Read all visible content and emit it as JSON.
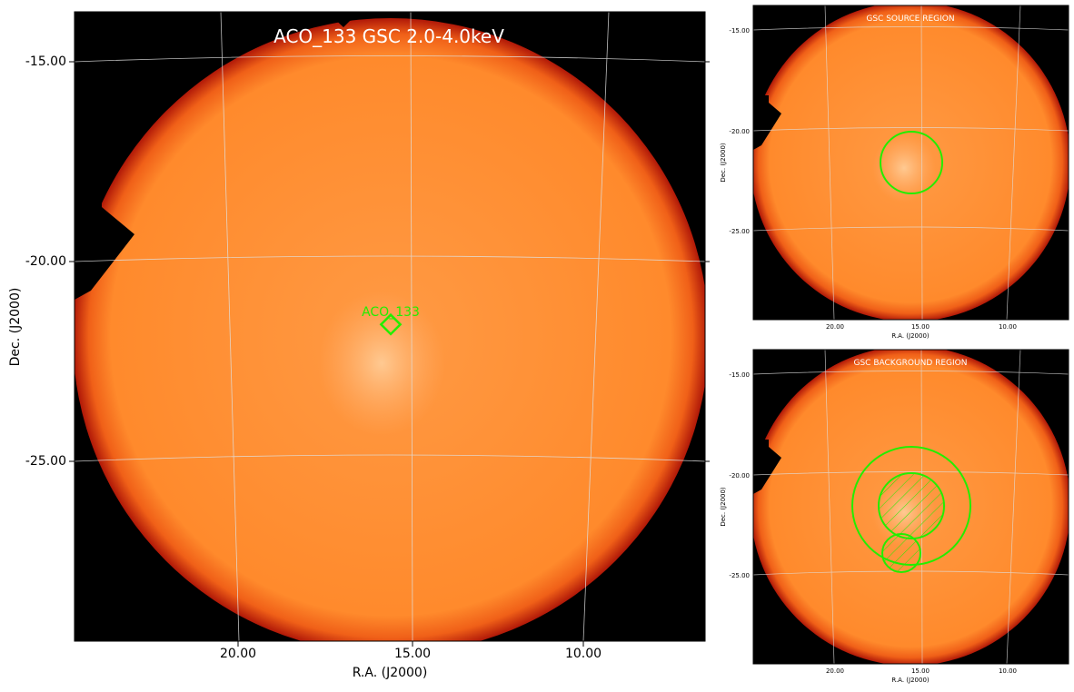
{
  "main_panel": {
    "title": "ACO_133 GSC 2.0-4.0keV",
    "xlabel": "R.A. (J2000)",
    "ylabel": "Dec. (J2000)",
    "x_ticks": [
      "20.00",
      "15.00",
      "10.00"
    ],
    "y_ticks": [
      "-15.00",
      "-20.00",
      "-25.00"
    ],
    "marker_label": "ACO_133",
    "marker_color": "#22ee00"
  },
  "source_panel": {
    "title": "GSC SOURCE REGION",
    "xlabel": "R.A. (J2000)",
    "ylabel": "Dec. (J2000)",
    "x_ticks": [
      "20.00",
      "15.00",
      "10.00"
    ],
    "y_ticks": [
      "-15.00",
      "-20.00",
      "-25.00"
    ]
  },
  "background_panel": {
    "title": "GSC BACKGROUND REGION",
    "xlabel": "R.A. (J2000)",
    "ylabel": "Dec. (J2000)",
    "x_ticks": [
      "20.00",
      "15.00",
      "10.00"
    ],
    "y_ticks": [
      "-15.00",
      "-20.00",
      "-25.00"
    ]
  },
  "colors": {
    "image_fill": "#ff8a2a",
    "image_edge": "#c0200a",
    "background": "#000000",
    "region": "#22ee00",
    "grid": "#dddddd"
  }
}
